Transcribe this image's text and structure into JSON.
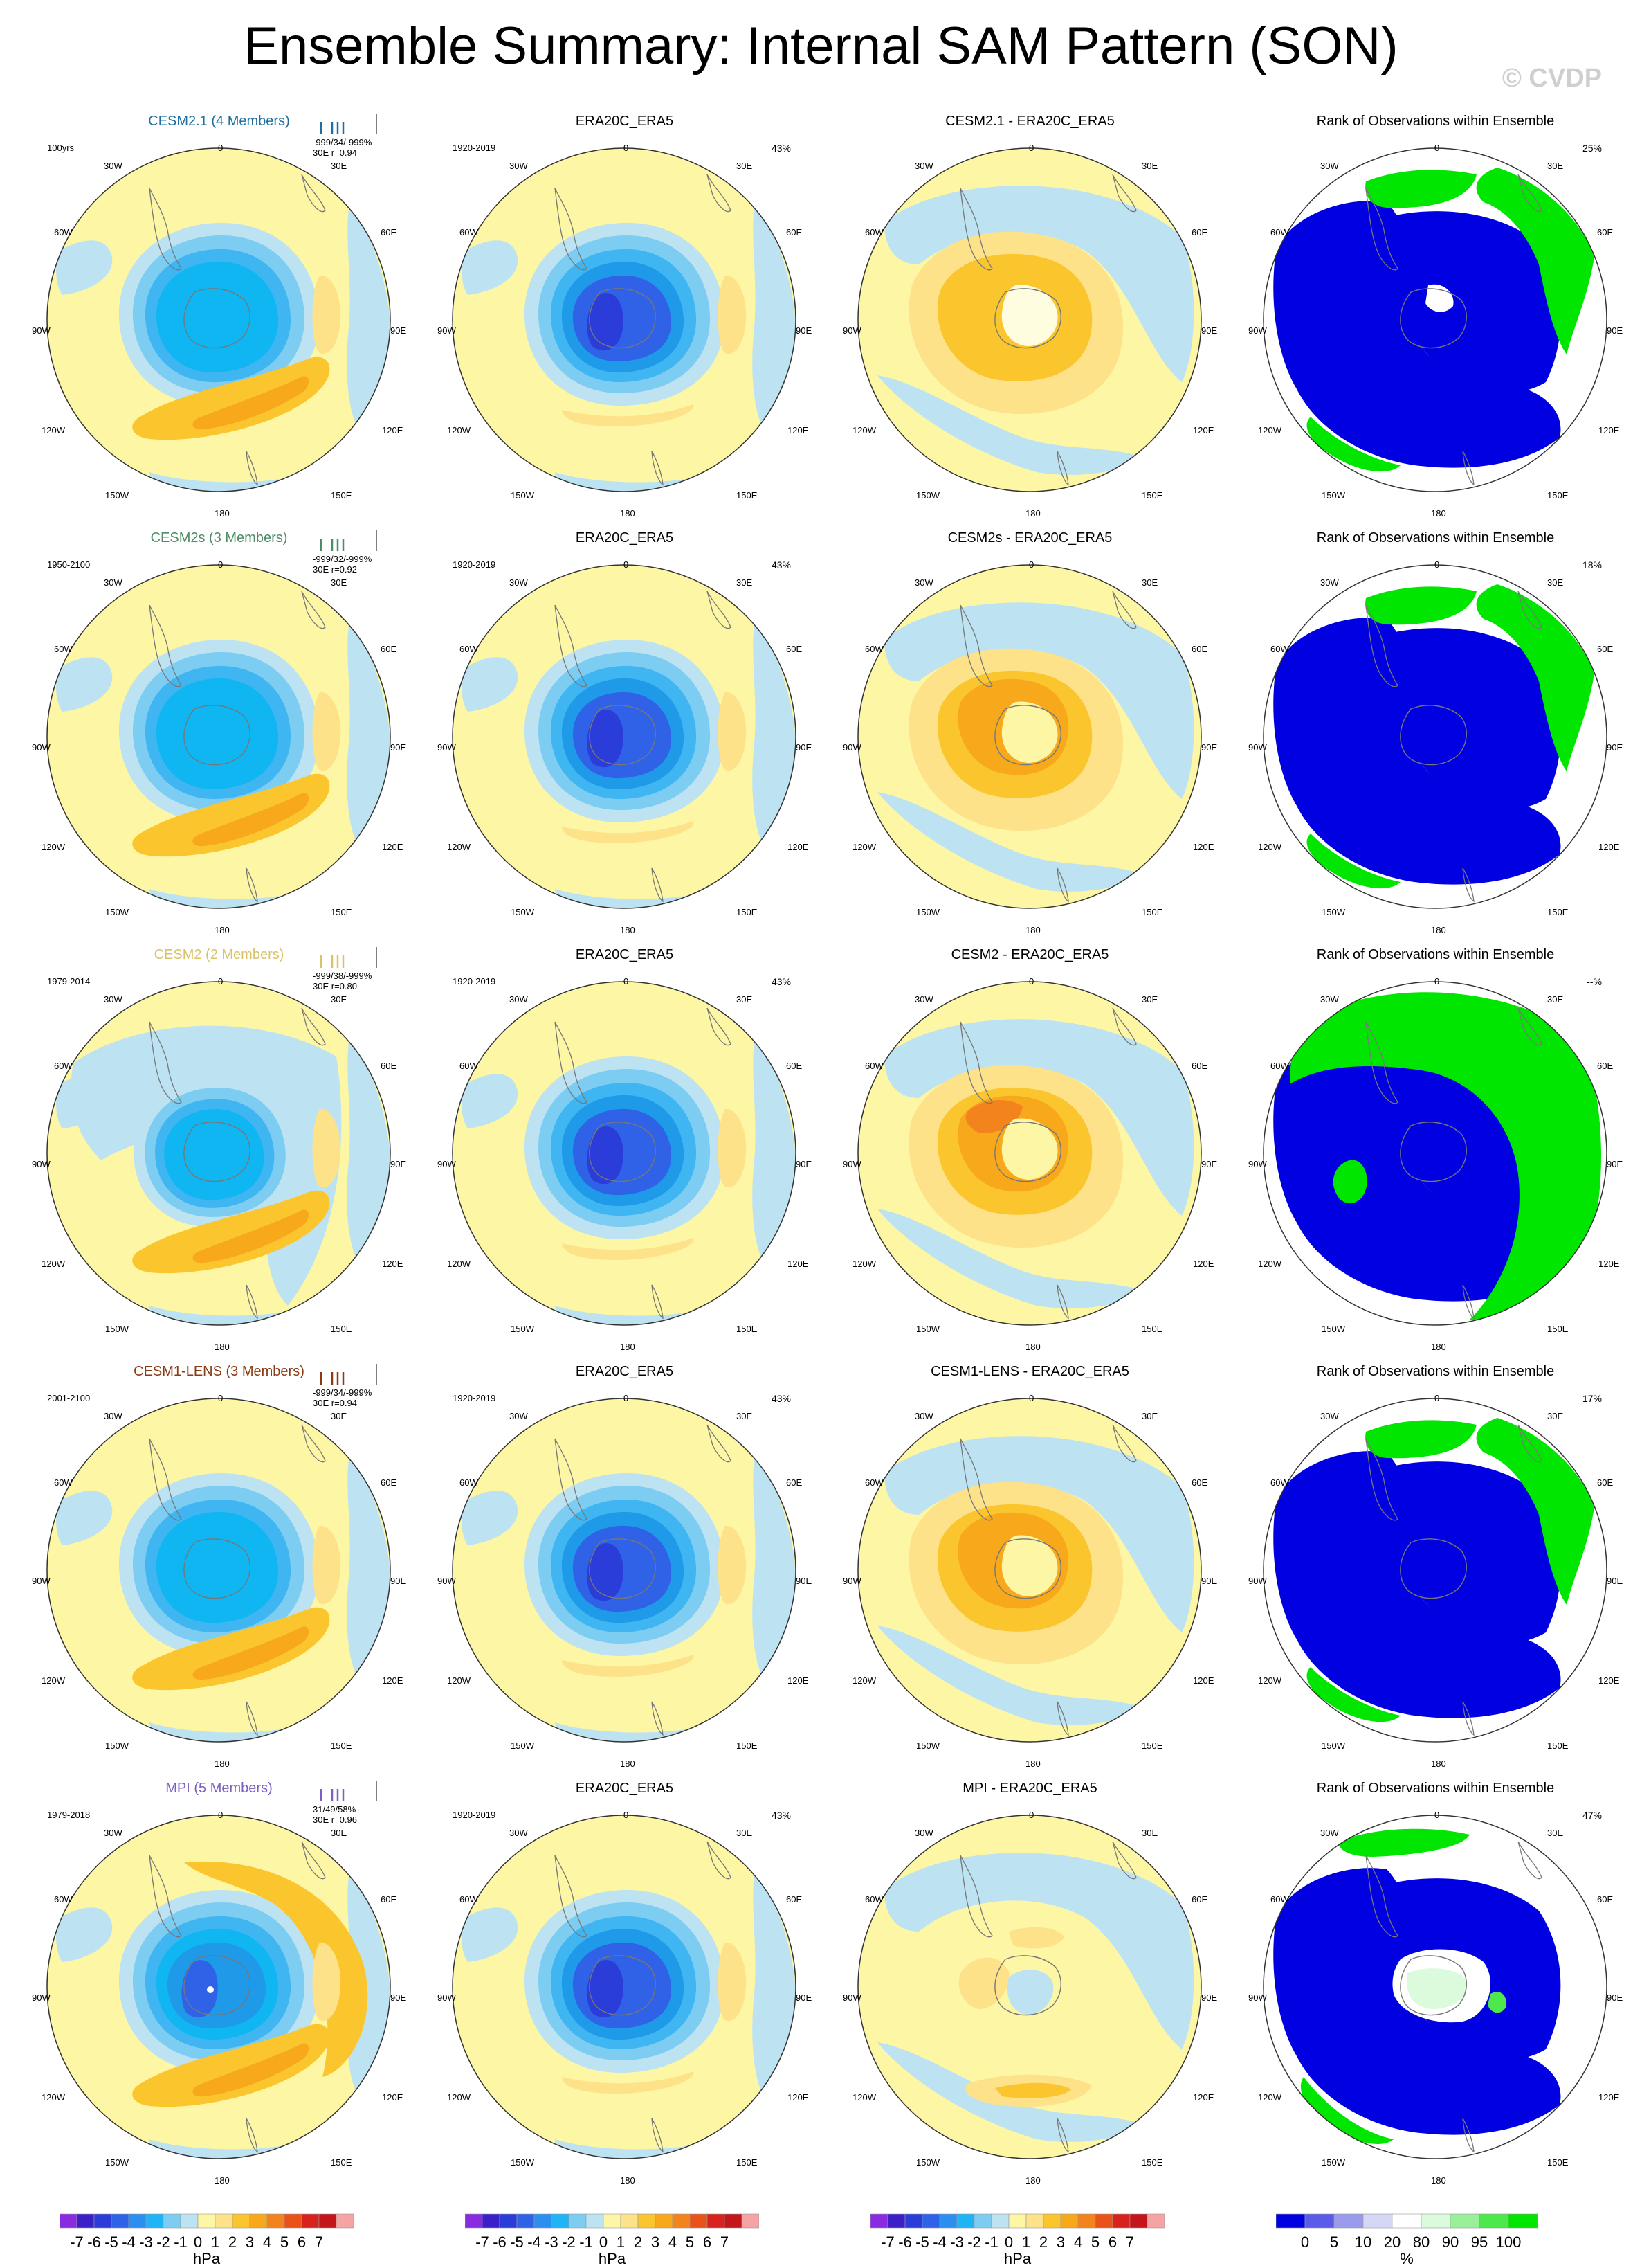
{
  "title": "Ensemble Summary: Internal SAM Pattern (SON)",
  "watermark": "© CVDP",
  "longitude_labels": {
    "top": "0",
    "top_left": "30W",
    "top_right": "30E",
    "upper_left": "60W",
    "upper_right": "60E",
    "left": "90W",
    "right": "90E",
    "lower_left": "120W",
    "lower_right": "120E",
    "bottom_left": "150W",
    "bottom_right": "150E",
    "bottom": "180"
  },
  "rows": [
    {
      "model": {
        "title": "CESM2.1 (4 Members)",
        "title_color": "#1e6fa0",
        "period": "100yrs",
        "stats_line1": "-999/34/-999%",
        "stats_line2": "30E r=0.94",
        "pattern": "model_a",
        "tick_color": "#1e6fa0"
      },
      "obs": {
        "title": "ERA20C_ERA5",
        "period": "1920-2019",
        "percent": "43%"
      },
      "diff": {
        "title": "CESM2.1 - ERA20C_ERA5",
        "pattern": "diff_a"
      },
      "rank": {
        "title": "Rank of Observations within Ensemble",
        "percent": "25%",
        "pattern": "rank_a"
      }
    },
    {
      "model": {
        "title": "CESM2s (3 Members)",
        "title_color": "#4f8b67",
        "period": "1950-2100",
        "stats_line1": "-999/32/-999%",
        "stats_line2": "30E r=0.92",
        "pattern": "model_b",
        "tick_color": "#4f8b67"
      },
      "obs": {
        "title": "ERA20C_ERA5",
        "period": "1920-2019",
        "percent": "43%"
      },
      "diff": {
        "title": "CESM2s - ERA20C_ERA5",
        "pattern": "diff_b"
      },
      "rank": {
        "title": "Rank of Observations within Ensemble",
        "percent": "18%",
        "pattern": "rank_b"
      }
    },
    {
      "model": {
        "title": "CESM2 (2 Members)",
        "title_color": "#d8c36a",
        "period": "1979-2014",
        "stats_line1": "-999/38/-999%",
        "stats_line2": "30E r=0.80",
        "pattern": "model_c",
        "tick_color": "#d8c36a"
      },
      "obs": {
        "title": "ERA20C_ERA5",
        "period": "1920-2019",
        "percent": "43%"
      },
      "diff": {
        "title": "CESM2 - ERA20C_ERA5",
        "pattern": "diff_c"
      },
      "rank": {
        "title": "Rank of Observations within Ensemble",
        "percent": "--%",
        "pattern": "rank_c"
      }
    },
    {
      "model": {
        "title": "CESM1-LENS (3 Members)",
        "title_color": "#8b3a12",
        "period": "2001-2100",
        "stats_line1": "-999/34/-999%",
        "stats_line2": "30E r=0.94",
        "pattern": "model_d",
        "tick_color": "#8b3a12"
      },
      "obs": {
        "title": "ERA20C_ERA5",
        "period": "1920-2019",
        "percent": "43%"
      },
      "diff": {
        "title": "CESM1-LENS - ERA20C_ERA5",
        "pattern": "diff_d"
      },
      "rank": {
        "title": "Rank of Observations within Ensemble",
        "percent": "17%",
        "pattern": "rank_d"
      }
    },
    {
      "model": {
        "title": "MPI (5 Members)",
        "title_color": "#7b5fc4",
        "period": "1979-2018",
        "stats_line1": "31/49/58%",
        "stats_line2": "30E r=0.96",
        "pattern": "model_e",
        "tick_color": "#7b5fc4"
      },
      "obs": {
        "title": "ERA20C_ERA5",
        "period": "1920-2019",
        "percent": "43%"
      },
      "diff": {
        "title": "MPI - ERA20C_ERA5",
        "pattern": "diff_e"
      },
      "rank": {
        "title": "Rank of Observations within Ensemble",
        "percent": "47%",
        "pattern": "rank_e"
      }
    }
  ],
  "colorbar_hpa": {
    "labels": [
      "-7",
      "-6",
      "-5",
      "-4",
      "-3",
      "-2",
      "-1",
      "0",
      "1",
      "2",
      "3",
      "4",
      "5",
      "6",
      "7"
    ],
    "colors": [
      "#8a2be2",
      "#3b1fc7",
      "#2b3dd8",
      "#2f62e6",
      "#2c8ff0",
      "#1fb4f5",
      "#7dcdf3",
      "#bde3f2",
      "#fdf6a4",
      "#fde28a",
      "#fbc62d",
      "#f7a81b",
      "#f3841d",
      "#e9531a",
      "#d9221d",
      "#c4151b",
      "#f5a3a3"
    ],
    "unit": "hPa"
  },
  "colorbar_rank": {
    "labels": [
      "0",
      "5",
      "10",
      "20",
      "80",
      "90",
      "95",
      "100"
    ],
    "colors": [
      "#0000e0",
      "#5b5bea",
      "#9b9bee",
      "#d6d6f6",
      "#ffffff",
      "#dcfadc",
      "#9af09a",
      "#4ce84c",
      "#00e600"
    ],
    "unit": "%"
  }
}
